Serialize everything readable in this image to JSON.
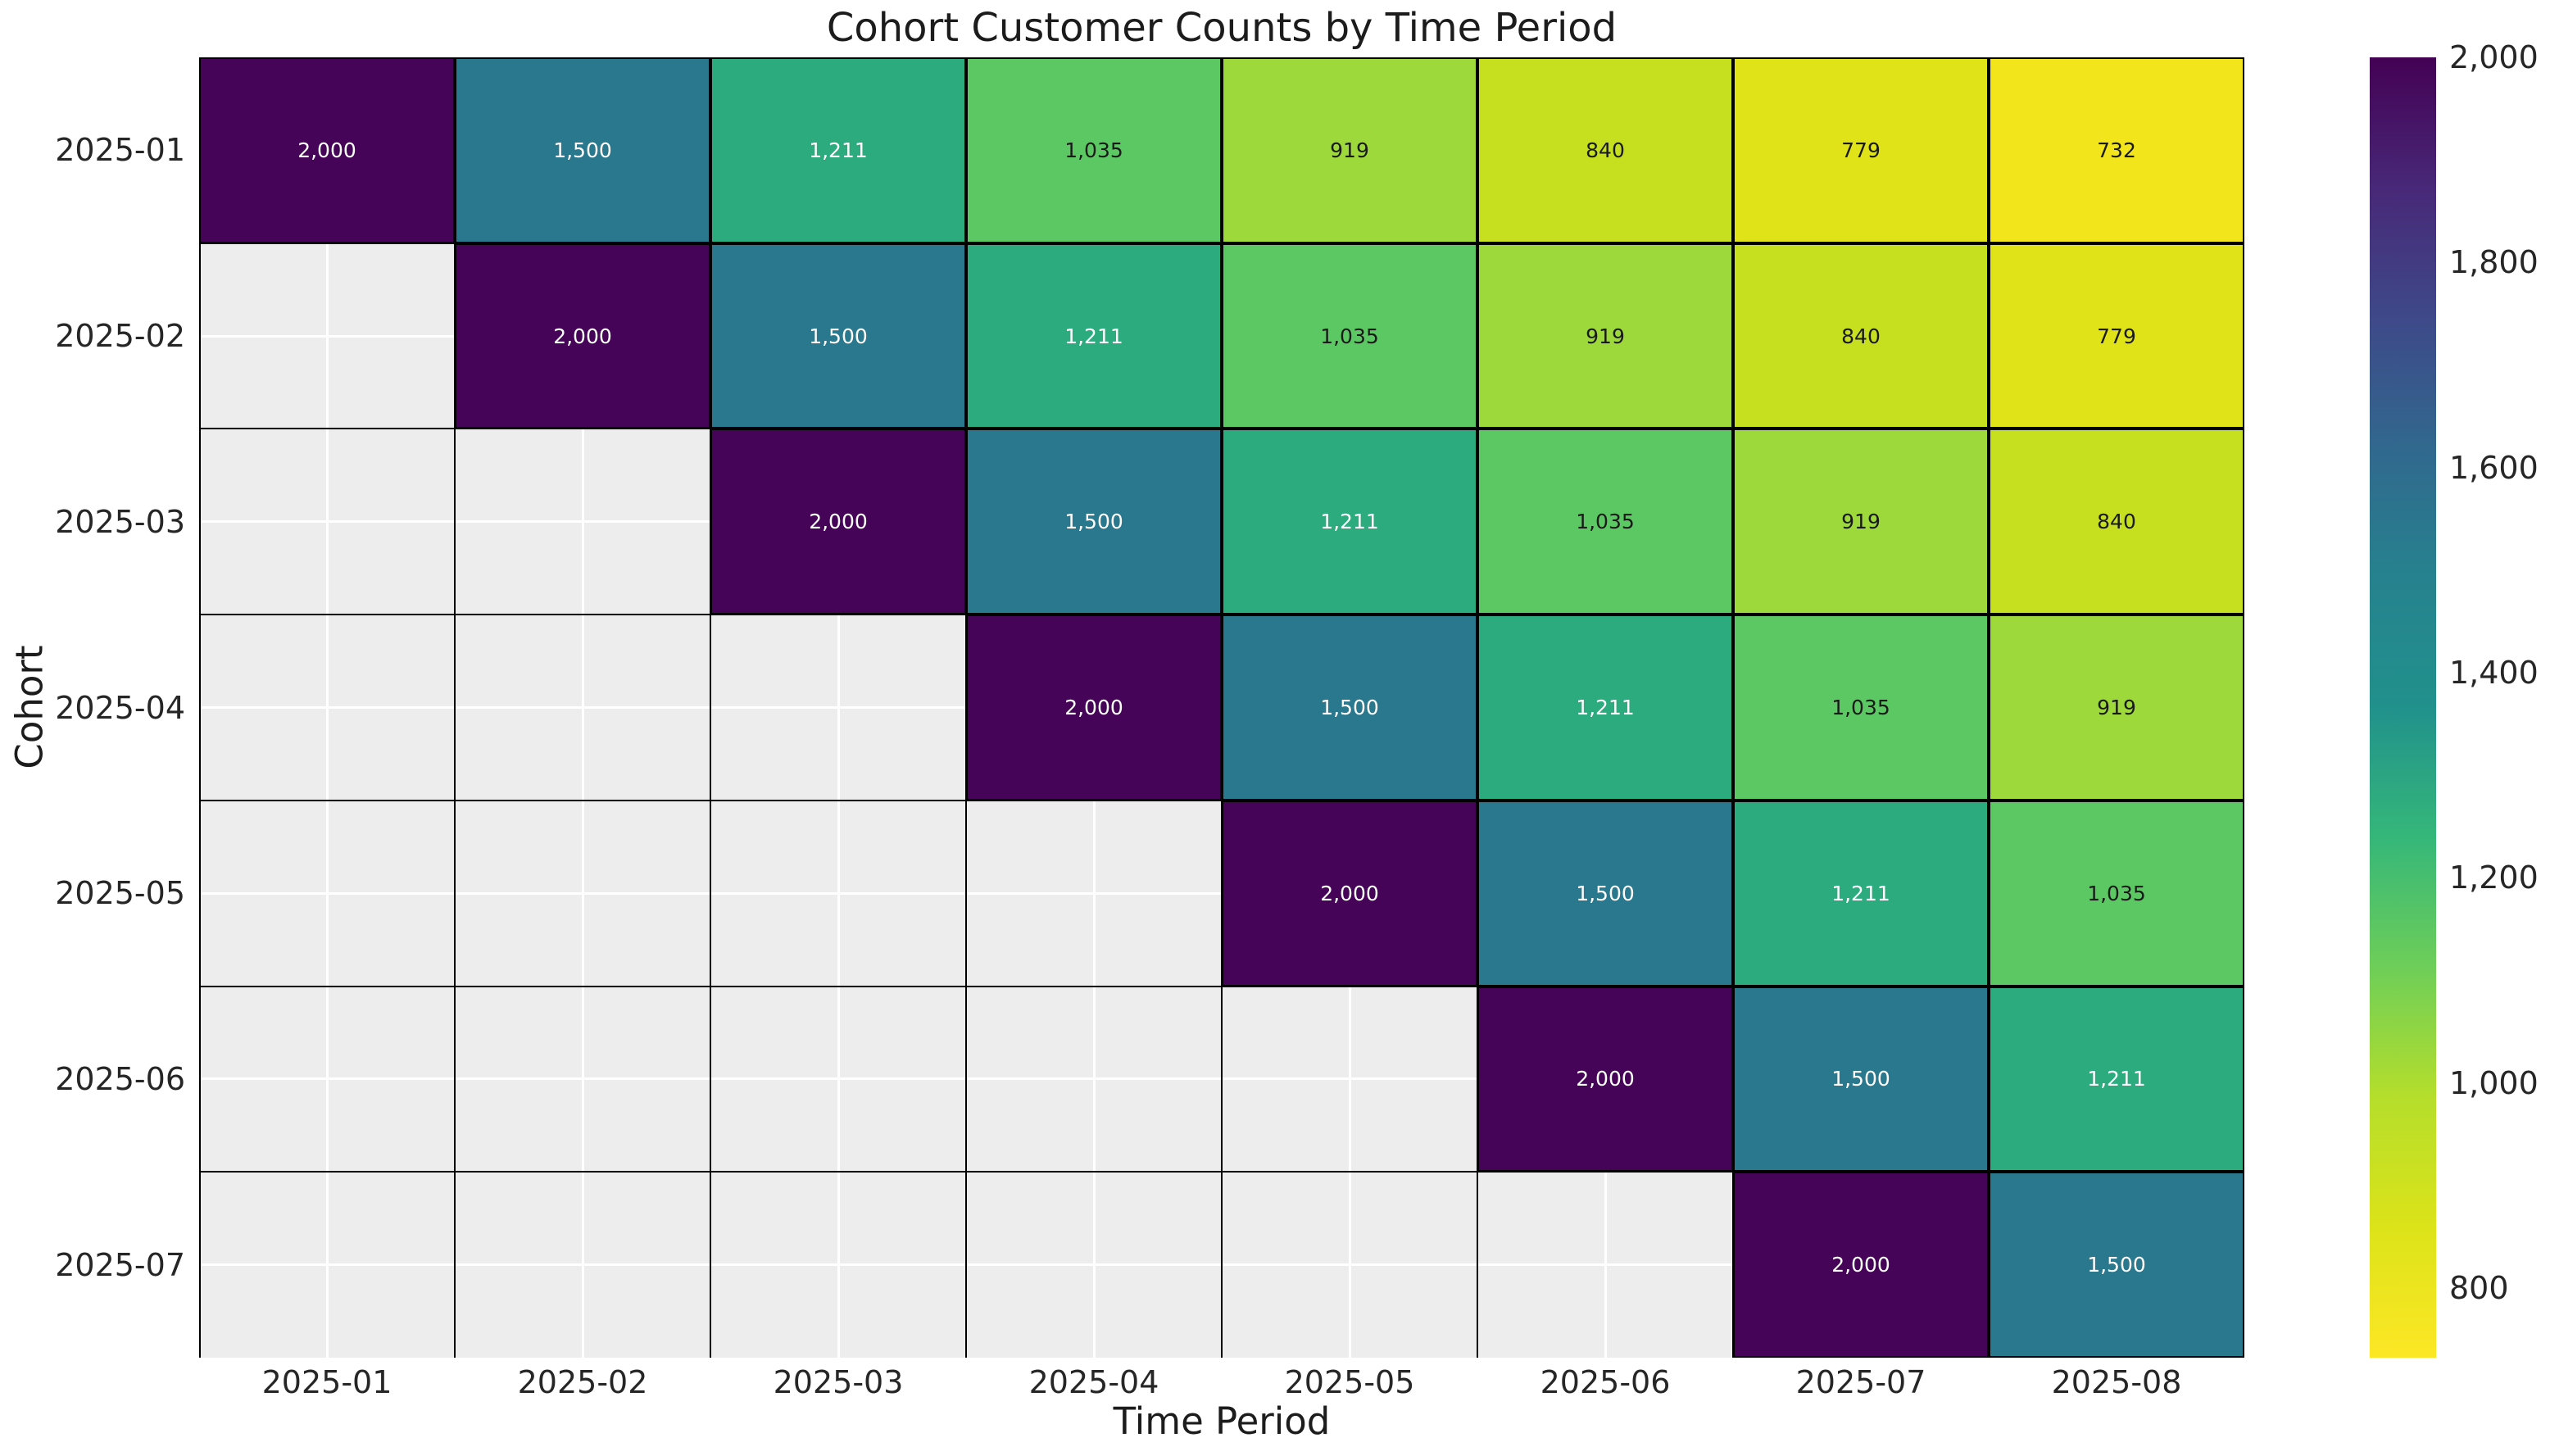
{
  "chart_data": {
    "type": "heatmap",
    "title": "Cohort Customer Counts by Time Period",
    "xlabel": "Time Period",
    "ylabel": "Cohort",
    "x_categories": [
      "2025-01",
      "2025-02",
      "2025-03",
      "2025-04",
      "2025-05",
      "2025-06",
      "2025-07",
      "2025-08"
    ],
    "y_categories": [
      "2025-01",
      "2025-02",
      "2025-03",
      "2025-04",
      "2025-05",
      "2025-06",
      "2025-07"
    ],
    "matrix": [
      [
        2000,
        1500,
        1211,
        1035,
        919,
        840,
        779,
        732
      ],
      [
        null,
        2000,
        1500,
        1211,
        1035,
        919,
        840,
        779
      ],
      [
        null,
        null,
        2000,
        1500,
        1211,
        1035,
        919,
        840
      ],
      [
        null,
        null,
        null,
        2000,
        1500,
        1211,
        1035,
        919
      ],
      [
        null,
        null,
        null,
        null,
        2000,
        1500,
        1211,
        1035
      ],
      [
        null,
        null,
        null,
        null,
        null,
        2000,
        1500,
        1211
      ],
      [
        null,
        null,
        null,
        null,
        null,
        null,
        2000,
        1500
      ]
    ],
    "colormap": "viridis_r",
    "vmin": 732,
    "vmax": 2000,
    "value_colors": {
      "2000": "#450457",
      "1500": "#2a788e",
      "1211": "#2bab7e",
      "1035": "#5cc863",
      "919": "#9dd93b",
      "840": "#c6e020",
      "779": "#dfe318",
      "732": "#f2e51c"
    },
    "light_text_color": "#ffffff",
    "dark_text_color": "#1a1a1a",
    "dark_text_below": 1100,
    "empty_cell_color": "#ededed",
    "grid_white": "#ffffff",
    "grid_black": "#000000",
    "colorbar_ticks": [
      2000,
      1800,
      1600,
      1400,
      1200,
      1000,
      800
    ],
    "colorbar_gradient_top_to_bottom": [
      "#440154",
      "#482878",
      "#3e4989",
      "#31688e",
      "#26828e",
      "#21918c",
      "#35b779",
      "#6ece58",
      "#b5de2b",
      "#dce319",
      "#fde725"
    ],
    "legend_position": "right-colorbar",
    "grid": true
  }
}
